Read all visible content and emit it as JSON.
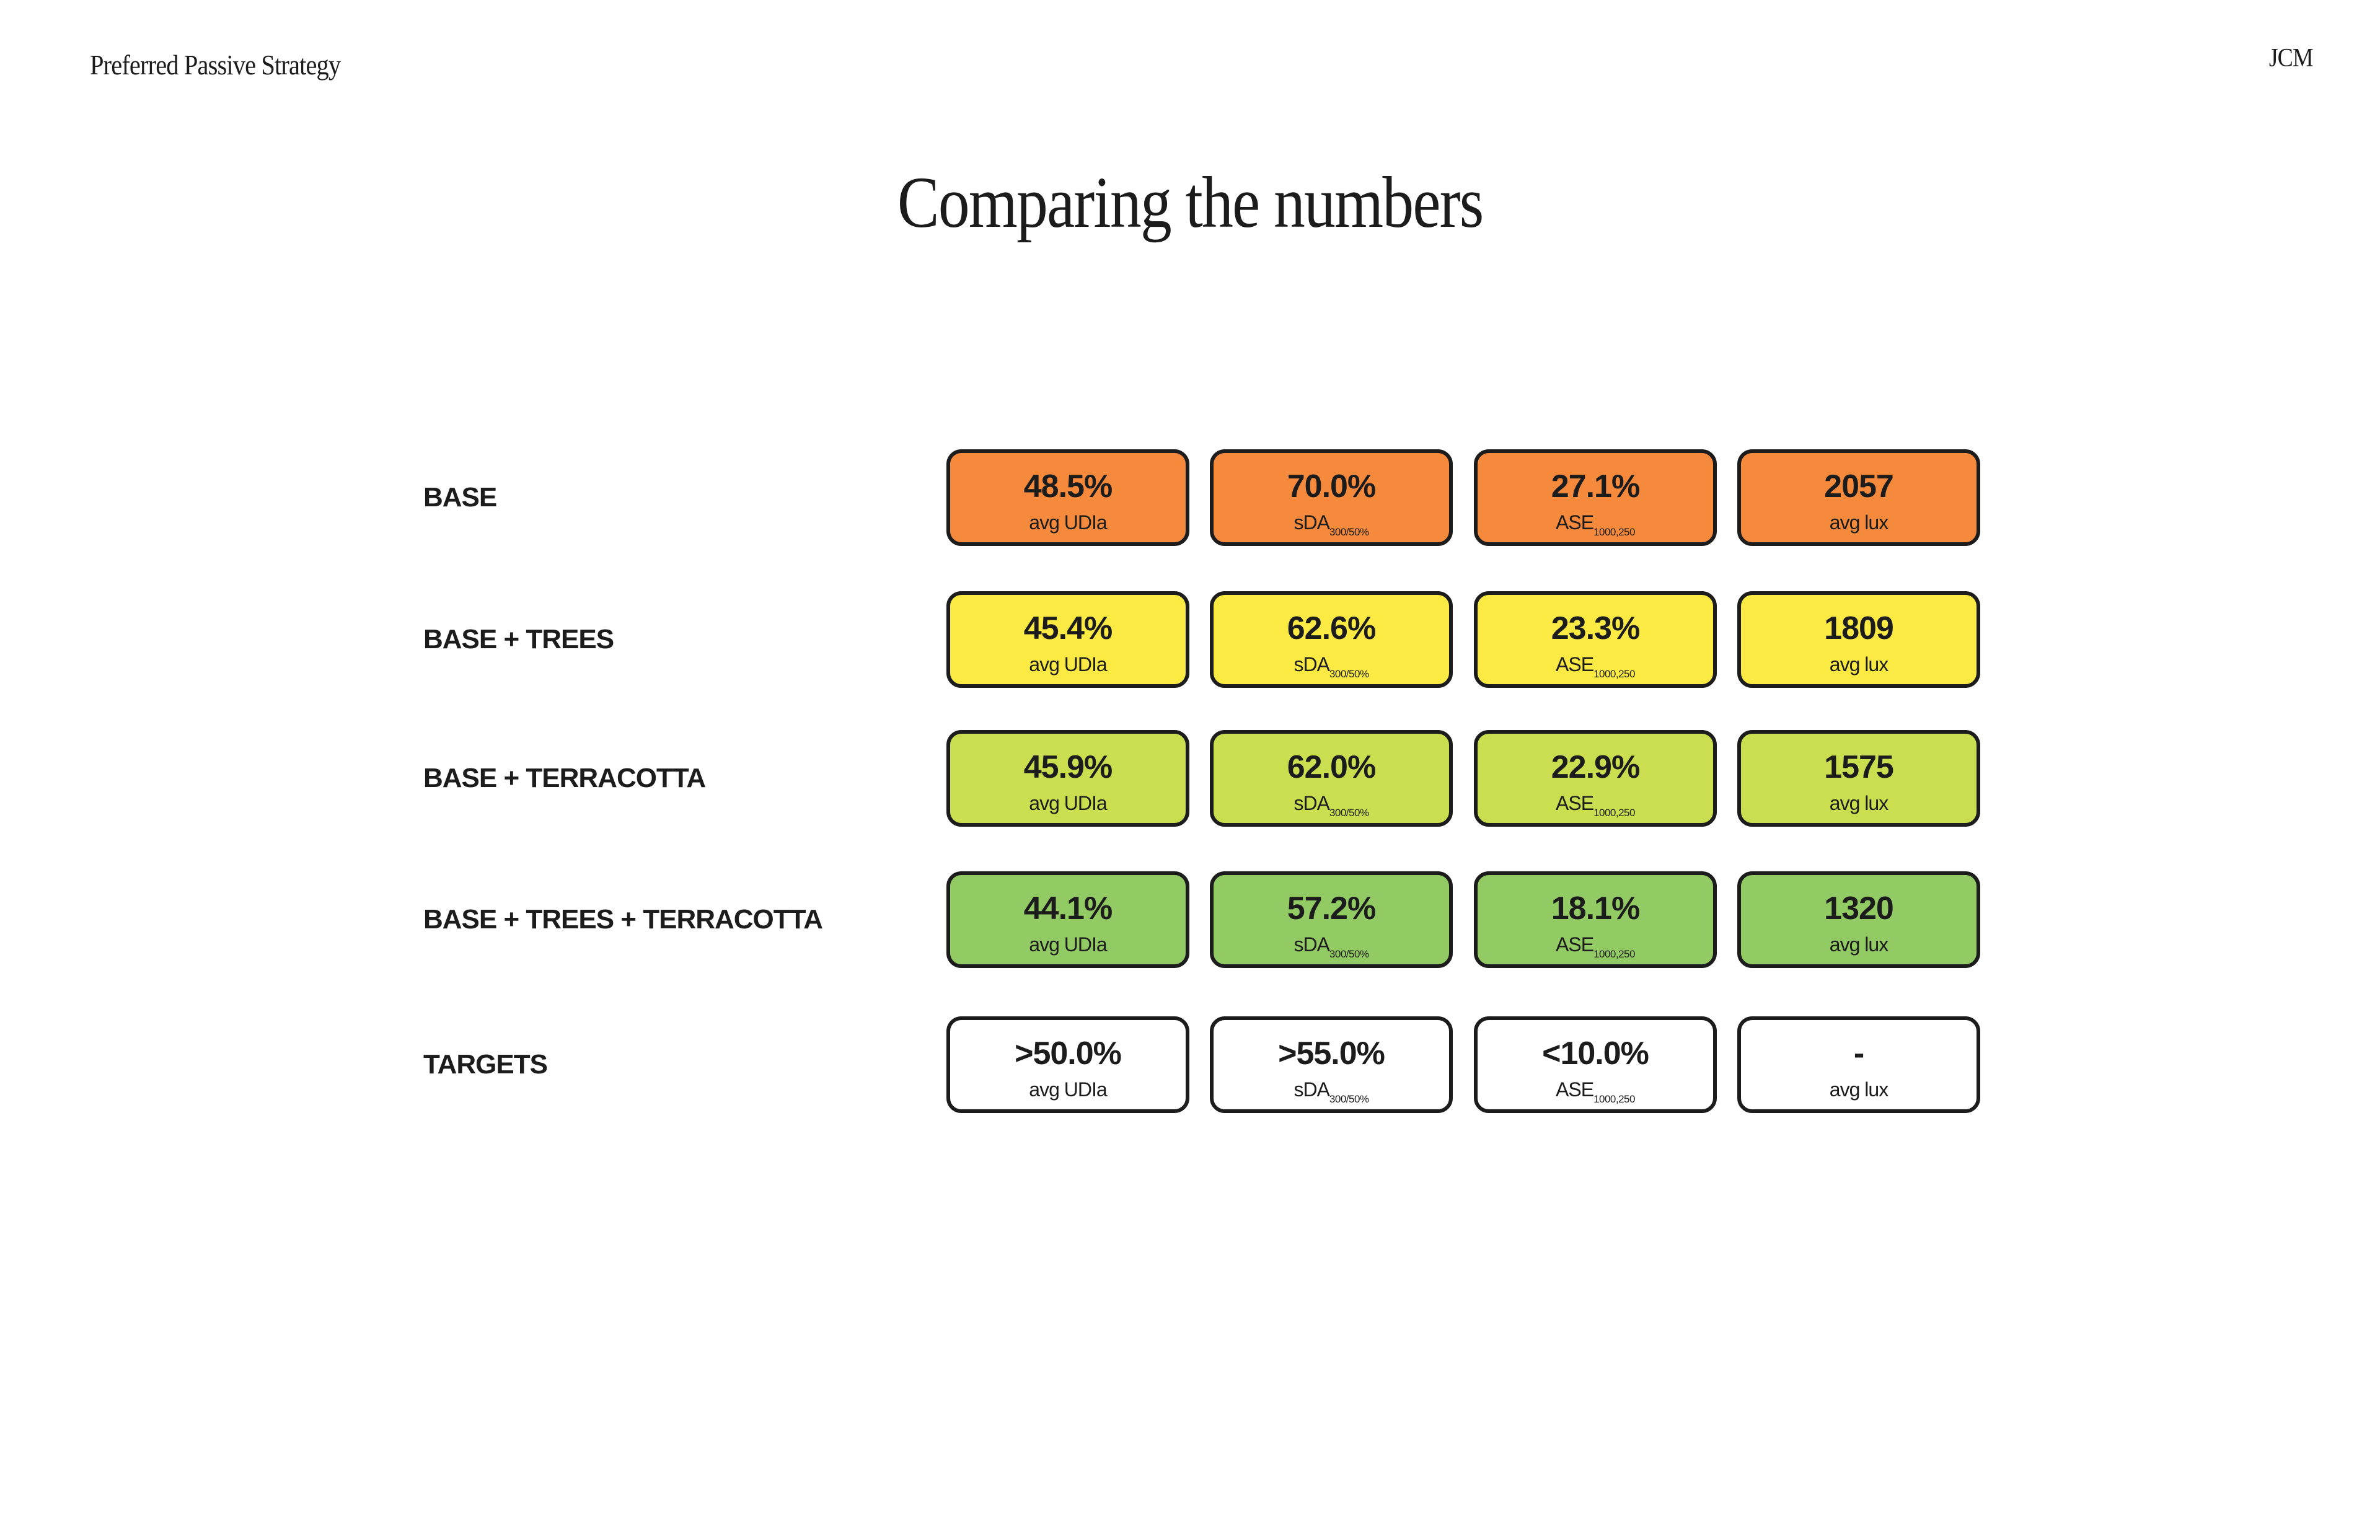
{
  "header": {
    "section_title": "Preferred Passive Strategy",
    "brand": "JCM"
  },
  "title": "Comparing the numbers",
  "rows": [
    {
      "label": "BASE",
      "color": "#f58a3d",
      "cells": [
        {
          "value": "48.5%",
          "metric": "avg UDIa",
          "sub": ""
        },
        {
          "value": "70.0%",
          "metric": "sDA",
          "sub": "300/50%"
        },
        {
          "value": "27.1%",
          "metric": "ASE",
          "sub": "1000,250"
        },
        {
          "value": "2057",
          "metric": "avg lux",
          "sub": ""
        }
      ]
    },
    {
      "label": "BASE + TREES",
      "color": "#fbea44",
      "cells": [
        {
          "value": "45.4%",
          "metric": "avg UDIa",
          "sub": ""
        },
        {
          "value": "62.6%",
          "metric": "sDA",
          "sub": "300/50%"
        },
        {
          "value": "23.3%",
          "metric": "ASE",
          "sub": "1000,250"
        },
        {
          "value": "1809",
          "metric": "avg lux",
          "sub": ""
        }
      ]
    },
    {
      "label": "BASE + TERRACOTTA",
      "color": "#cade50",
      "cells": [
        {
          "value": "45.9%",
          "metric": "avg UDIa",
          "sub": ""
        },
        {
          "value": "62.0%",
          "metric": "sDA",
          "sub": "300/50%"
        },
        {
          "value": "22.9%",
          "metric": "ASE",
          "sub": "1000,250"
        },
        {
          "value": "1575",
          "metric": "avg lux",
          "sub": ""
        }
      ]
    },
    {
      "label": "BASE + TREES + TERRACOTTA",
      "color": "#92ca63",
      "cells": [
        {
          "value": "44.1%",
          "metric": "avg UDIa",
          "sub": ""
        },
        {
          "value": "57.2%",
          "metric": "sDA",
          "sub": "300/50%"
        },
        {
          "value": "18.1%",
          "metric": "ASE",
          "sub": "1000,250"
        },
        {
          "value": "1320",
          "metric": "avg lux",
          "sub": ""
        }
      ]
    },
    {
      "label": "TARGETS",
      "color": "#ffffff",
      "cells": [
        {
          "value": ">50.0%",
          "metric": "avg UDIa",
          "sub": ""
        },
        {
          "value": ">55.0%",
          "metric": "sDA",
          "sub": "300/50%"
        },
        {
          "value": "<10.0%",
          "metric": "ASE",
          "sub": "1000,250"
        },
        {
          "value": "-",
          "metric": "avg lux",
          "sub": ""
        }
      ]
    }
  ]
}
